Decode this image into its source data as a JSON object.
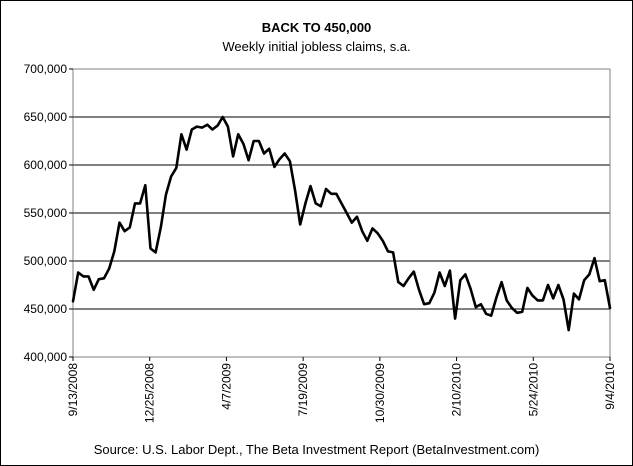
{
  "chart_data": {
    "type": "line",
    "title": "BACK TO 450,000",
    "subtitle": "Weekly initial jobless claims, s.a.",
    "source": "Source: U.S. Labor Dept., The Beta Investment Report (BetaInvestment.com)",
    "xlabel": "",
    "ylabel": "",
    "ylim": [
      400000,
      700000
    ],
    "y_ticks": [
      "400,000",
      "450,000",
      "500,000",
      "550,000",
      "600,000",
      "650,000",
      "700,000"
    ],
    "x_ticks": [
      "9/13/2008",
      "12/25/2008",
      "4/7/2009",
      "7/19/2009",
      "10/30/2009",
      "2/10/2010",
      "5/24/2010",
      "9/4/2010"
    ],
    "grid": "horizontal",
    "colors": {
      "line": "#000000",
      "grid": "#000000",
      "plot_border": "#808080"
    },
    "series": [
      {
        "values": [
          458000,
          488000,
          484000,
          484000,
          470000,
          481000,
          482000,
          492000,
          510000,
          540000,
          531000,
          535000,
          560000,
          560000,
          579000,
          513000,
          509000,
          535000,
          569000,
          588000,
          597000,
          632000,
          616000,
          637000,
          640000,
          639000,
          642000,
          637000,
          641000,
          650000,
          640000,
          609000,
          632000,
          622000,
          605000,
          625000,
          625000,
          612000,
          617000,
          598000,
          606000,
          612000,
          604000,
          574000,
          538000,
          560000,
          578000,
          560000,
          557000,
          575000,
          570000,
          570000,
          560000,
          550000,
          540000,
          546000,
          531000,
          521000,
          534000,
          529000,
          521000,
          510000,
          509000,
          478000,
          474000,
          482000,
          489000,
          470000,
          455000,
          456000,
          467000,
          488000,
          474000,
          490000,
          440000,
          480000,
          486000,
          471000,
          452000,
          455000,
          445000,
          443000,
          462000,
          478000,
          459000,
          451000,
          446000,
          447000,
          472000,
          464000,
          459000,
          459000,
          475000,
          461000,
          475000,
          460000,
          428000,
          466000,
          460000,
          480000,
          486000,
          503000,
          479000,
          480000,
          451000
        ]
      }
    ]
  }
}
